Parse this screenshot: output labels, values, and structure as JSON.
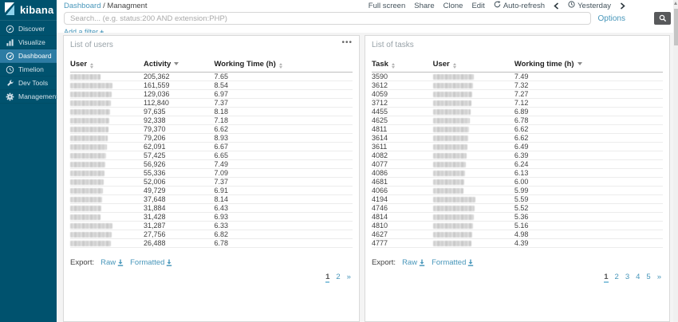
{
  "app": {
    "logo_text": "kibana"
  },
  "sidebar": {
    "items": [
      {
        "label": "Discover",
        "icon": "compass-icon",
        "active": false
      },
      {
        "label": "Visualize",
        "icon": "bar-chart-icon",
        "active": false
      },
      {
        "label": "Dashboard",
        "icon": "dashboard-gauge-icon",
        "active": true
      },
      {
        "label": "Timelion",
        "icon": "clock-chart-icon",
        "active": false
      },
      {
        "label": "Dev Tools",
        "icon": "wrench-icon",
        "active": false
      },
      {
        "label": "Management",
        "icon": "gear-icon",
        "active": false
      }
    ]
  },
  "topbar": {
    "breadcrumb_root": "Dashboard",
    "breadcrumb_sep": "/",
    "breadcrumb_current": "Managment",
    "full_screen": "Full screen",
    "share": "Share",
    "clone": "Clone",
    "edit": "Edit",
    "auto_refresh": "Auto-refresh",
    "time_range": "Yesterday"
  },
  "query_bar": {
    "placeholder": "Search... (e.g. status:200 AND extension:PHP)",
    "options_label": "Options"
  },
  "filter_bar": {
    "add_filter_label": "Add a filter"
  },
  "icons": {
    "plus": "+",
    "ellipsis": "•••"
  },
  "colors": {
    "sidebar_bg": "#00526e",
    "sidebar_active": "#2d7ca4",
    "link_blue": "#4796ba",
    "search_button_bg": "#58595b",
    "panel_border": "#d9d9d9"
  },
  "panels": [
    {
      "title": "List of users",
      "has_menu": true,
      "redacted_col": 0,
      "columns": [
        {
          "label": "User",
          "sort": "both"
        },
        {
          "label": "Activity",
          "sort": "desc"
        },
        {
          "label": "Working Time (h)",
          "sort": "both"
        }
      ],
      "rows": [
        [
          "",
          "205,362",
          "7.65"
        ],
        [
          "",
          "161,559",
          "8.54"
        ],
        [
          "",
          "129,036",
          "6.97"
        ],
        [
          "",
          "112,840",
          "7.37"
        ],
        [
          "",
          "97,635",
          "8.18"
        ],
        [
          "",
          "92,338",
          "7.18"
        ],
        [
          "",
          "79,370",
          "6.62"
        ],
        [
          "",
          "79,206",
          "8.93"
        ],
        [
          "",
          "62,091",
          "6.67"
        ],
        [
          "",
          "57,425",
          "6.65"
        ],
        [
          "",
          "56,926",
          "7.49"
        ],
        [
          "",
          "55,336",
          "7.09"
        ],
        [
          "",
          "52,006",
          "7.37"
        ],
        [
          "",
          "49,729",
          "6.91"
        ],
        [
          "",
          "37,648",
          "8.14"
        ],
        [
          "",
          "31,884",
          "6.43"
        ],
        [
          "",
          "31,428",
          "6.93"
        ],
        [
          "",
          "31,287",
          "6.33"
        ],
        [
          "",
          "27,756",
          "6.82"
        ],
        [
          "",
          "26,488",
          "6.78"
        ]
      ],
      "export_label": "Export:",
      "export_raw": "Raw",
      "export_formatted": "Formatted",
      "pagination": {
        "pages": [
          "1",
          "2"
        ],
        "next": "»",
        "active": "1"
      }
    },
    {
      "title": "List of tasks",
      "has_menu": false,
      "redacted_col": 1,
      "columns": [
        {
          "label": "Task",
          "sort": "both"
        },
        {
          "label": "User",
          "sort": "both"
        },
        {
          "label": "Working time (h)",
          "sort": "desc"
        }
      ],
      "rows": [
        [
          "3590",
          "",
          "7.49"
        ],
        [
          "3612",
          "",
          "7.32"
        ],
        [
          "4059",
          "",
          "7.27"
        ],
        [
          "3712",
          "",
          "7.12"
        ],
        [
          "4455",
          "",
          "6.89"
        ],
        [
          "4625",
          "",
          "6.78"
        ],
        [
          "4811",
          "",
          "6.62"
        ],
        [
          "3614",
          "",
          "6.62"
        ],
        [
          "3611",
          "",
          "6.49"
        ],
        [
          "4082",
          "",
          "6.39"
        ],
        [
          "4077",
          "",
          "6.24"
        ],
        [
          "4086",
          "",
          "6.13"
        ],
        [
          "4681",
          "",
          "6.00"
        ],
        [
          "4066",
          "",
          "5.99"
        ],
        [
          "4194",
          "",
          "5.59"
        ],
        [
          "4746",
          "",
          "5.52"
        ],
        [
          "4814",
          "",
          "5.36"
        ],
        [
          "4810",
          "",
          "5.16"
        ],
        [
          "4627",
          "",
          "4.98"
        ],
        [
          "4777",
          "",
          "4.39"
        ]
      ],
      "export_label": "Export:",
      "export_raw": "Raw",
      "export_formatted": "Formatted",
      "pagination": {
        "pages": [
          "1",
          "2",
          "3",
          "4",
          "5"
        ],
        "next": "»",
        "active": "1"
      }
    }
  ]
}
